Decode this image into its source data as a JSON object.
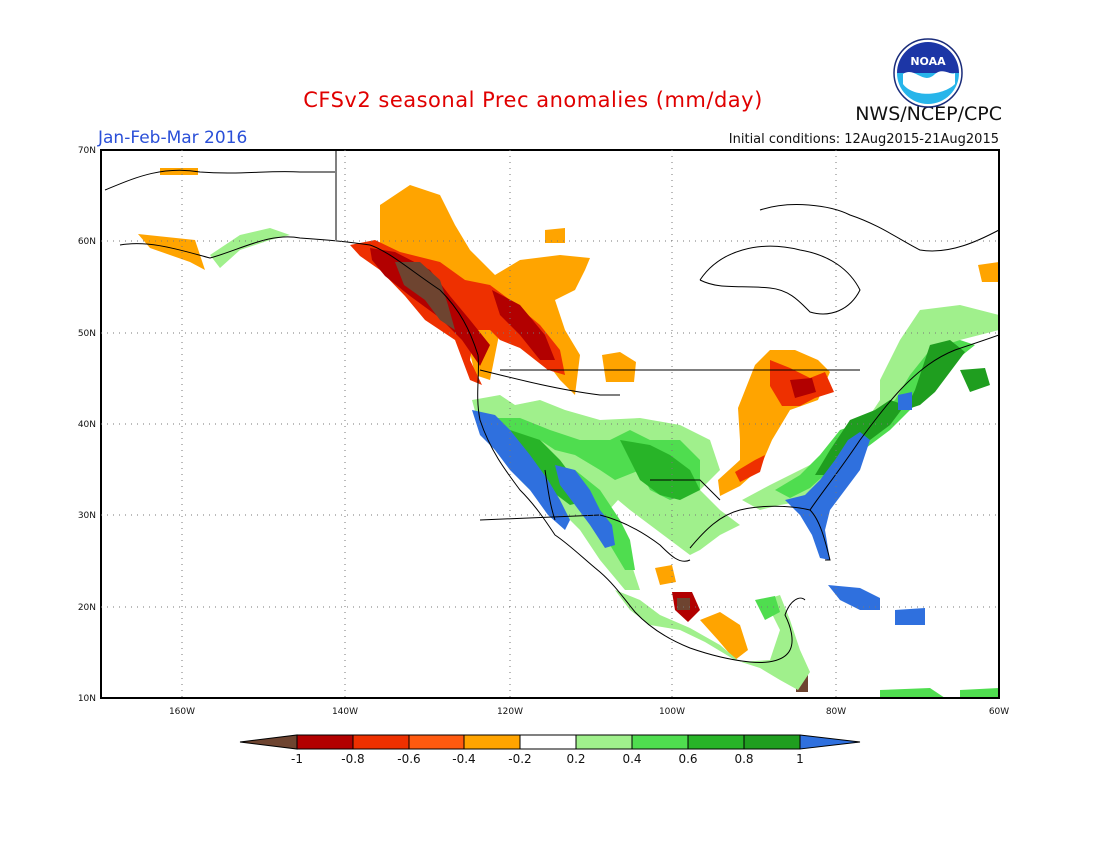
{
  "header": {
    "title": "CFSv2 seasonal Prec anomalies (mm/day)",
    "period": "Jan-Feb-Mar 2016",
    "initial_conditions": "Initial conditions: 12Aug2015-21Aug2015",
    "agency": "NWS/NCEP/CPC",
    "logo_text": "NOAA"
  },
  "map": {
    "projection": "lat-lon",
    "lon_range": [
      -172,
      -60
    ],
    "lat_range": [
      10,
      70
    ],
    "lat_ticks": [
      "70N",
      "60N",
      "50N",
      "40N",
      "30N",
      "20N",
      "10N"
    ],
    "lon_ticks": [
      "160W",
      "140W",
      "120W",
      "100W",
      "80W",
      "60W"
    ],
    "gridlines": "dotted"
  },
  "legend": {
    "tick_labels": [
      "-1",
      "-0.8",
      "-0.6",
      "-0.4",
      "-0.2",
      "0.2",
      "0.4",
      "0.6",
      "0.8",
      "1"
    ],
    "colors": [
      "#6e4430",
      "#b20000",
      "#ee3000",
      "#ff5a10",
      "#ffa400",
      "#ffffff",
      "#a0f08c",
      "#4fdd4f",
      "#28b428",
      "#1f9e1f",
      "#2f70de"
    ]
  },
  "colors": {
    "dry_extreme": "#6e4430",
    "dry_strong": "#b20000",
    "dry_moderate": "#ee3000",
    "dry_light": "#ff5a10",
    "dry_weak": "#ffa400",
    "wet_weak": "#a0f08c",
    "wet_light": "#4fdd4f",
    "wet_moderate": "#28b428",
    "wet_strong": "#1f9e1f",
    "wet_extreme": "#2f70de"
  }
}
